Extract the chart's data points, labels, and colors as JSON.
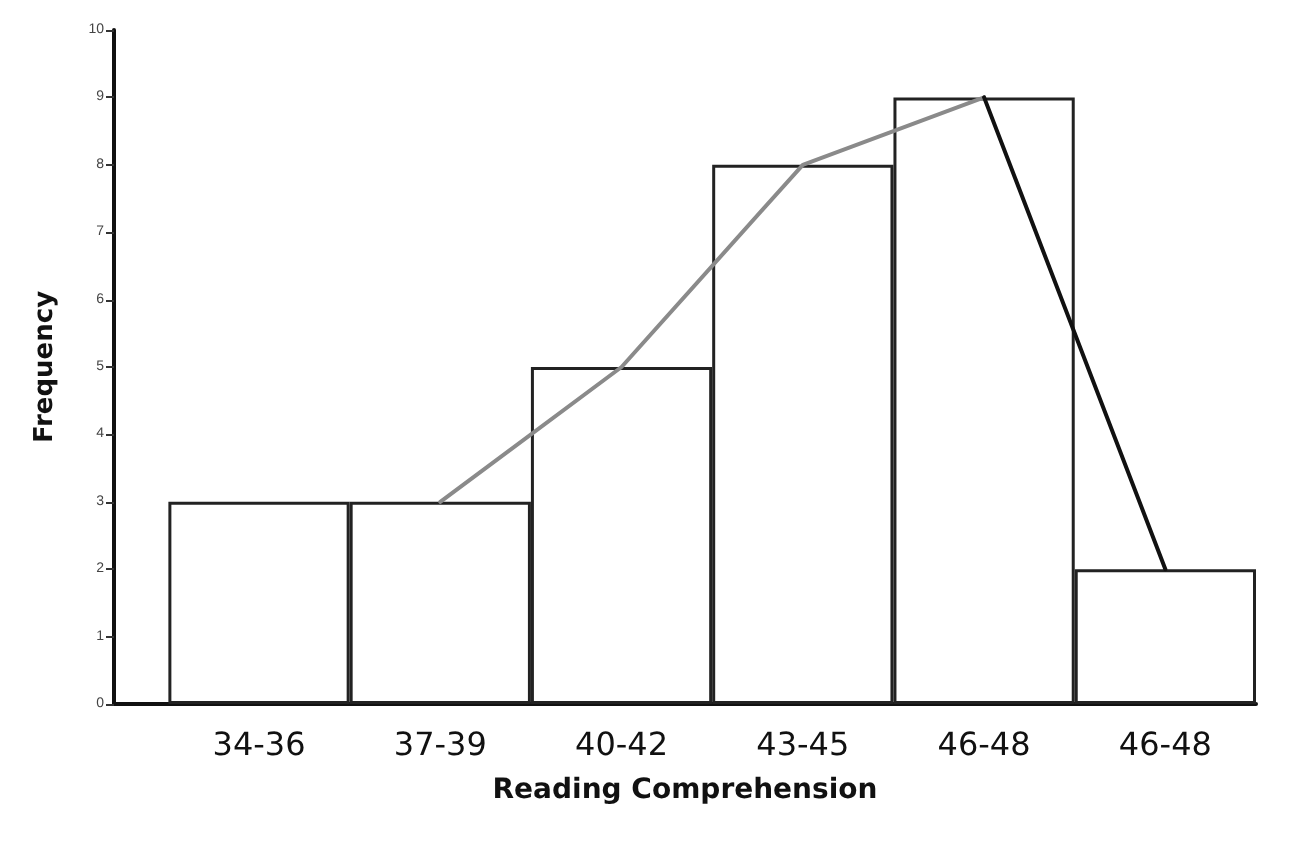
{
  "chart_data": {
    "type": "bar",
    "xlabel": "Reading Comprehension",
    "ylabel": "Frequency",
    "categories": [
      "34-36",
      "37-39",
      "40-42",
      "43-45",
      "46-48",
      "46-48"
    ],
    "series": [
      {
        "color": "#ffffff",
        "values": [
          3,
          3,
          5,
          8,
          9,
          2
        ]
      },
      {
        "type": "line",
        "color": "#8a8a8a",
        "values": [
          null,
          3,
          5,
          8,
          9,
          null
        ]
      },
      {
        "type": "line",
        "color": "#111111",
        "values": [
          null,
          null,
          null,
          null,
          9,
          2
        ]
      }
    ],
    "ylim": [
      0,
      10
    ],
    "yticks": [
      0,
      1,
      2,
      3,
      4,
      5,
      6,
      7,
      8,
      9,
      10
    ],
    "grid": false,
    "marker": "none",
    "line_style": "solid"
  }
}
